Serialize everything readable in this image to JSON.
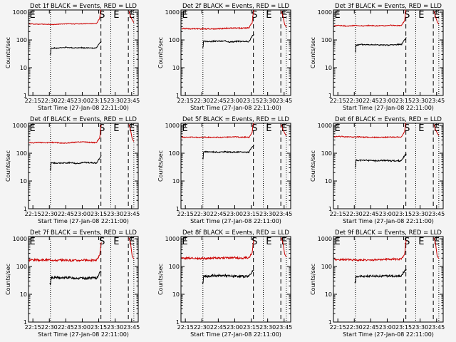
{
  "figure": {
    "background": "#f4f4f4",
    "axis_color": "#000000"
  },
  "panels_common": {
    "type": "line",
    "ylabel": "Counts/sec",
    "xlabel": "Start Time (27-Jan-08 22:11:00)",
    "y_scale": "log",
    "ylim": [
      1,
      1200
    ],
    "y_ticks": [
      1,
      10,
      100,
      1000
    ],
    "y_tick_labels": [
      "1",
      "10",
      "100",
      "1000"
    ],
    "x_range_min": [
      0,
      38
    ],
    "x_ticks_min": [
      4,
      19,
      34,
      49,
      64,
      79,
      94
    ],
    "x_tick_labels": [
      "22:15",
      "22:30",
      "22:45",
      "23:00",
      "23:15",
      "23:30",
      "23:45"
    ],
    "x_range_max": 100,
    "dotted_lines_min": [
      20,
      75,
      96
    ],
    "dashed_lines_min": [
      66,
      91
    ],
    "marker_labels": [
      {
        "text": "E",
        "at_min": 1
      },
      {
        "text": "S",
        "at_min": 67
      },
      {
        "text": "E",
        "at_min": 80
      },
      {
        "text": "E",
        "at_min": 94
      }
    ]
  },
  "chart_data": [
    {
      "type": "line",
      "title": "Det 1f BLACK = Events, RED = LLD",
      "xlabel": "Start Time (27-Jan-08 22:11:00)",
      "ylabel": "Counts/sec",
      "series": [
        {
          "color": "#000000",
          "base": 50,
          "noise": 0.03,
          "seed": 1
        },
        {
          "color": "#cc0000",
          "base": 380,
          "noise": 0.02,
          "seed": 2
        }
      ]
    },
    {
      "type": "line",
      "title": "Det 2f BLACK = Events, RED = LLD",
      "xlabel": "Start Time (27-Jan-08 22:11:00)",
      "ylabel": "Counts/sec",
      "series": [
        {
          "color": "#000000",
          "base": 90,
          "noise": 0.04,
          "seed": 3
        },
        {
          "color": "#cc0000",
          "base": 260,
          "noise": 0.04,
          "seed": 4
        }
      ]
    },
    {
      "type": "line",
      "title": "Det 3f BLACK = Events, RED = LLD",
      "xlabel": "Start Time (27-Jan-08 22:11:00)",
      "ylabel": "Counts/sec",
      "series": [
        {
          "color": "#000000",
          "base": 65,
          "noise": 0.04,
          "seed": 5
        },
        {
          "color": "#cc0000",
          "base": 330,
          "noise": 0.03,
          "seed": 6
        }
      ]
    },
    {
      "type": "line",
      "title": "Det 4f BLACK = Events, RED = LLD",
      "xlabel": "Start Time (27-Jan-08 22:11:00)",
      "ylabel": "Counts/sec",
      "series": [
        {
          "color": "#000000",
          "base": 45,
          "noise": 0.04,
          "seed": 7
        },
        {
          "color": "#cc0000",
          "base": 240,
          "noise": 0.03,
          "seed": 8
        }
      ]
    },
    {
      "type": "line",
      "title": "Det 5f BLACK = Events, RED = LLD",
      "xlabel": "Start Time (27-Jan-08 22:11:00)",
      "ylabel": "Counts/sec",
      "series": [
        {
          "color": "#000000",
          "base": 110,
          "noise": 0.04,
          "seed": 9
        },
        {
          "color": "#cc0000",
          "base": 380,
          "noise": 0.03,
          "seed": 10
        }
      ]
    },
    {
      "type": "line",
      "title": "Det 6f BLACK = Events, RED = LLD",
      "xlabel": "Start Time (27-Jan-08 22:11:00)",
      "ylabel": "Counts/sec",
      "series": [
        {
          "color": "#000000",
          "base": 55,
          "noise": 0.05,
          "seed": 11
        },
        {
          "color": "#cc0000",
          "base": 390,
          "noise": 0.03,
          "seed": 12
        }
      ]
    },
    {
      "type": "line",
      "title": "Det 7f BLACK = Events, RED = LLD",
      "xlabel": "Start Time (27-Jan-08 22:11:00)",
      "ylabel": "Counts/sec",
      "series": [
        {
          "color": "#000000",
          "base": 40,
          "noise": 0.08,
          "seed": 13
        },
        {
          "color": "#cc0000",
          "base": 170,
          "noise": 0.07,
          "seed": 14
        }
      ]
    },
    {
      "type": "line",
      "title": "Det 8f BLACK = Events, RED = LLD",
      "xlabel": "Start Time (27-Jan-08 22:11:00)",
      "ylabel": "Counts/sec",
      "series": [
        {
          "color": "#000000",
          "base": 45,
          "noise": 0.08,
          "seed": 15
        },
        {
          "color": "#cc0000",
          "base": 200,
          "noise": 0.07,
          "seed": 16
        }
      ]
    },
    {
      "type": "line",
      "title": "Det 9f BLACK = Events, RED = LLD",
      "xlabel": "Start Time (27-Jan-08 22:11:00)",
      "ylabel": "Counts/sec",
      "series": [
        {
          "color": "#000000",
          "base": 45,
          "noise": 0.07,
          "seed": 17
        },
        {
          "color": "#cc0000",
          "base": 175,
          "noise": 0.06,
          "seed": 18
        }
      ]
    }
  ]
}
